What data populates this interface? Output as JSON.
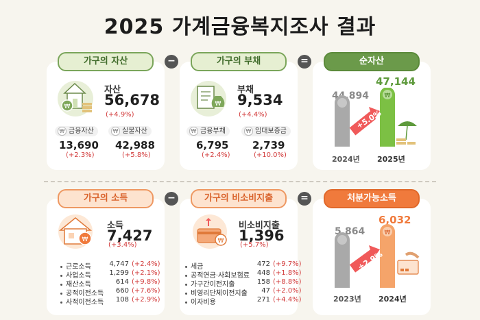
{
  "title": "2025 가계금융복지조사 결과",
  "assets": {
    "tab": "가구의 자산",
    "label": "자산",
    "value": "56,678",
    "change": "(+4.9%)",
    "sub": [
      {
        "label": "금융자산",
        "value": "13,690",
        "change": "(+2.3%)"
      },
      {
        "label": "실물자산",
        "value": "42,988",
        "change": "(+5.8%)"
      }
    ]
  },
  "debt": {
    "tab": "가구의 부채",
    "label": "부채",
    "value": "9,534",
    "change": "(+4.4%)",
    "sub": [
      {
        "label": "금융부채",
        "value": "6,795",
        "change": "(+2.4%)"
      },
      {
        "label": "임대보증금",
        "value": "2,739",
        "change": "(+10.0%)"
      }
    ]
  },
  "net_assets": {
    "tab": "순자산",
    "prev_value": "44,894",
    "cur_value": "47,144",
    "growth": "+5.0%",
    "prev_year": "2024년",
    "cur_year": "2025년"
  },
  "income": {
    "tab": "가구의 소득",
    "label": "소득",
    "value": "7,427",
    "change": "(+3.4%)",
    "items": [
      {
        "label": "근로소득",
        "value": "4,747",
        "change": "(+2.4%)"
      },
      {
        "label": "사업소득",
        "value": "1,299",
        "change": "(+2.1%)"
      },
      {
        "label": "재산소득",
        "value": "614",
        "change": "(+9.8%)"
      },
      {
        "label": "공적이전소득",
        "value": "660",
        "change": "(+7.6%)"
      },
      {
        "label": "사적이전소득",
        "value": "108",
        "change": "(+2.9%)"
      }
    ]
  },
  "non_consumption": {
    "tab": "가구의 비소비지출",
    "label": "비소비지출",
    "value": "1,396",
    "change": "(+5.7%)",
    "items": [
      {
        "label": "세금",
        "value": "472",
        "change": "(+9.7%)"
      },
      {
        "label": "공적연금·사회보험료",
        "value": "448",
        "change": "(+1.8%)"
      },
      {
        "label": "가구간이전지출",
        "value": "158",
        "change": "(+8.8%)"
      },
      {
        "label": "비영리단체이전지출",
        "value": "47",
        "change": "(+2.0%)"
      },
      {
        "label": "이자비용",
        "value": "271",
        "change": "(+4.4%)"
      }
    ]
  },
  "disposable": {
    "tab": "처분가능소득",
    "prev_value": "5,864",
    "cur_value": "6,032",
    "growth": "+2.9%",
    "prev_year": "2023년",
    "cur_year": "2024년"
  },
  "operators": {
    "minus": "−",
    "equals": "="
  },
  "icons": {
    "won": "₩"
  },
  "colors": {
    "green": "#6b9a4a",
    "orange": "#f07a3c",
    "gray_bar": "#a9a9a9",
    "red": "#d23a3a"
  }
}
